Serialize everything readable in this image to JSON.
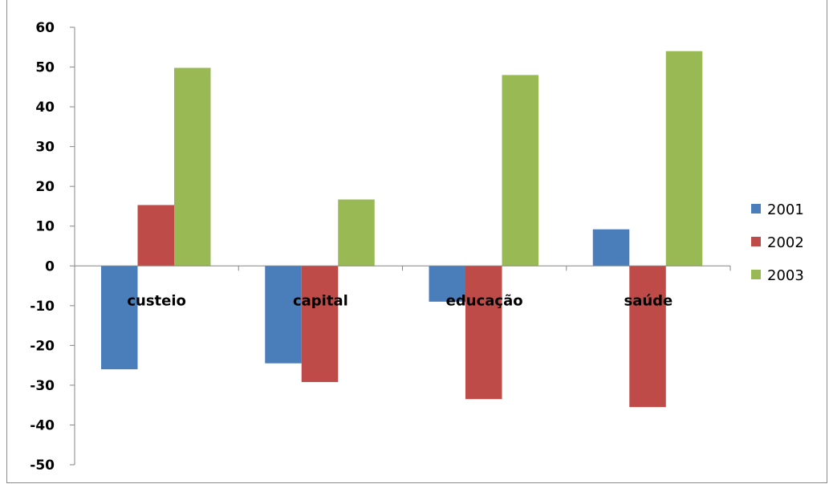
{
  "chart_data": {
    "type": "bar",
    "title": "",
    "xlabel": "",
    "ylabel": "",
    "categories": [
      "custeio",
      "capital",
      "educação",
      "saúde"
    ],
    "series": [
      {
        "name": "2001",
        "color": "#4a7ebb",
        "values": [
          -26,
          -24.5,
          -9,
          9.2
        ]
      },
      {
        "name": "2002",
        "color": "#be4b48",
        "values": [
          15.3,
          -29.2,
          -33.5,
          -35.5
        ]
      },
      {
        "name": "2003",
        "color": "#98b954",
        "values": [
          49.8,
          16.7,
          48,
          54
        ]
      }
    ],
    "ylim": [
      -50,
      60
    ],
    "yticks": [
      60,
      50,
      40,
      30,
      20,
      10,
      0,
      -10,
      -20,
      -30,
      -40,
      -50
    ],
    "grid": false,
    "legend_position": "right"
  }
}
